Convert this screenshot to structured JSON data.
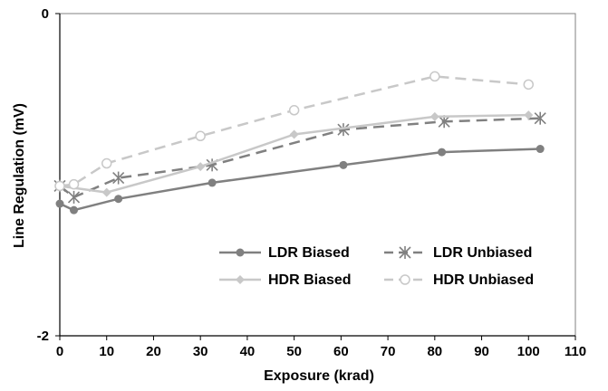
{
  "chart_data": {
    "type": "line",
    "xlabel": "Exposure (krad)",
    "ylabel": "Line Regulation (mV)",
    "xlim": [
      0,
      110
    ],
    "ylim": [
      -2,
      0
    ],
    "x_ticks": [
      0,
      10,
      20,
      30,
      40,
      50,
      60,
      70,
      80,
      90,
      100,
      110
    ],
    "y_ticks": [
      -2,
      0
    ],
    "y_tick_labels": [
      "-2",
      "0"
    ],
    "grid": false,
    "legend_position": "bottom-center",
    "series": [
      {
        "name": "LDR Biased",
        "color": "#808080",
        "dashed": false,
        "marker": "circle-filled",
        "points": [
          [
            0,
            -1.18
          ],
          [
            3,
            -1.22
          ],
          [
            12.5,
            -1.15
          ],
          [
            32.5,
            -1.05
          ],
          [
            60.5,
            -0.94
          ],
          [
            81.5,
            -0.86
          ],
          [
            102.5,
            -0.84
          ]
        ]
      },
      {
        "name": "LDR Unbiased",
        "color": "#808080",
        "dashed": true,
        "marker": "asterisk",
        "points": [
          [
            0,
            -1.07
          ],
          [
            3,
            -1.14
          ],
          [
            12.5,
            -1.02
          ],
          [
            32.5,
            -0.94
          ],
          [
            60.5,
            -0.72
          ],
          [
            82,
            -0.67
          ],
          [
            102.5,
            -0.65
          ]
        ]
      },
      {
        "name": "HDR Biased",
        "color": "#c8c8c8",
        "dashed": false,
        "marker": "diamond-filled",
        "points": [
          [
            0,
            -1.07
          ],
          [
            10,
            -1.11
          ],
          [
            30,
            -0.95
          ],
          [
            50,
            -0.75
          ],
          [
            80,
            -0.64
          ],
          [
            100,
            -0.63
          ]
        ]
      },
      {
        "name": "HDR Unbiased",
        "color": "#c8c8c8",
        "dashed": true,
        "marker": "circle-open",
        "points": [
          [
            0,
            -1.07
          ],
          [
            3,
            -1.06
          ],
          [
            10,
            -0.93
          ],
          [
            30,
            -0.76
          ],
          [
            50,
            -0.6
          ],
          [
            80,
            -0.39
          ],
          [
            100,
            -0.44
          ]
        ]
      }
    ]
  }
}
